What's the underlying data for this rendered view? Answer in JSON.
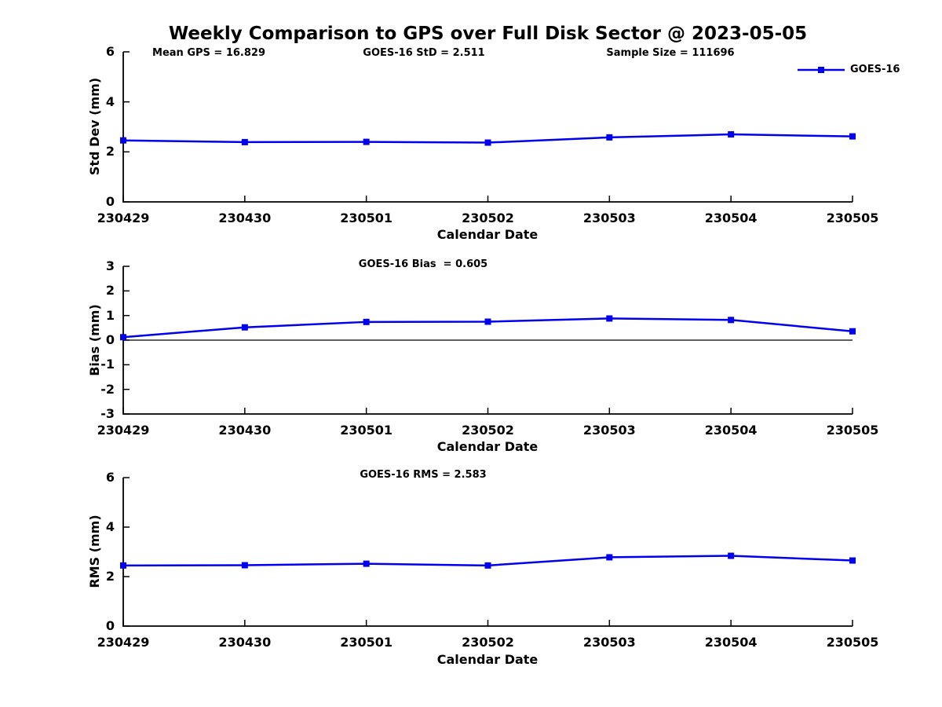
{
  "title": "Weekly Comparison to GPS over Full Disk Sector @ 2023-05-05",
  "legend": {
    "label": "GOES-16",
    "position": "top-right",
    "box": false
  },
  "colors": {
    "series": "#0000EE",
    "axis": "#000000",
    "background": "#FFFFFF",
    "text": "#000000"
  },
  "chart_data": [
    {
      "type": "line",
      "ylabel": "Std Dev (mm)",
      "xlabel": "Calendar Date",
      "annotations": [
        "Mean GPS = 16.829",
        "GOES-16 StD = 2.511",
        "Sample Size = 111696"
      ],
      "categories": [
        "230429",
        "230430",
        "230501",
        "230502",
        "230503",
        "230504",
        "230505"
      ],
      "series": [
        {
          "name": "GOES-16",
          "marker": "square",
          "values": [
            2.46,
            2.39,
            2.4,
            2.37,
            2.58,
            2.7,
            2.62
          ]
        }
      ],
      "ylim": [
        0,
        6
      ],
      "yticks": [
        0,
        2,
        4,
        6
      ],
      "grid": false,
      "zero_line": false
    },
    {
      "type": "line",
      "ylabel": "Bias (mm)",
      "xlabel": "Calendar Date",
      "annotations": [
        "GOES-16 Bias  = 0.605"
      ],
      "categories": [
        "230429",
        "230430",
        "230501",
        "230502",
        "230503",
        "230504",
        "230505"
      ],
      "series": [
        {
          "name": "GOES-16",
          "marker": "square",
          "values": [
            0.12,
            0.52,
            0.74,
            0.75,
            0.88,
            0.82,
            0.36
          ]
        }
      ],
      "ylim": [
        -3,
        3
      ],
      "yticks": [
        3,
        2,
        1,
        0,
        -1,
        -2,
        -3
      ],
      "grid": false,
      "zero_line": true
    },
    {
      "type": "line",
      "ylabel": "RMS (mm)",
      "xlabel": "Calendar Date",
      "annotations": [
        "GOES-16 RMS = 2.583"
      ],
      "categories": [
        "230429",
        "230430",
        "230501",
        "230502",
        "230503",
        "230504",
        "230505"
      ],
      "series": [
        {
          "name": "GOES-16",
          "marker": "square",
          "values": [
            2.45,
            2.46,
            2.52,
            2.45,
            2.78,
            2.84,
            2.65
          ]
        }
      ],
      "ylim": [
        0,
        6
      ],
      "yticks": [
        0,
        2,
        4,
        6
      ],
      "grid": false,
      "zero_line": false
    }
  ]
}
